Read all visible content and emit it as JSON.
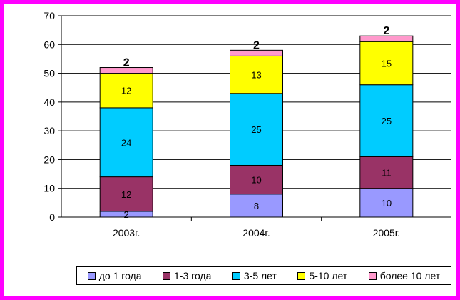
{
  "chart_data": {
    "type": "bar",
    "stacked": true,
    "categories": [
      "2003г.",
      "2004г.",
      "2005г."
    ],
    "series": [
      {
        "name": "до 1 года",
        "color": "#9999ff",
        "values": [
          2,
          8,
          10
        ]
      },
      {
        "name": "1-3 года",
        "color": "#993366",
        "values": [
          12,
          10,
          11
        ]
      },
      {
        "name": "3-5 лет",
        "color": "#00ccff",
        "values": [
          24,
          25,
          25
        ]
      },
      {
        "name": "5-10 лет",
        "color": "#ffff00",
        "values": [
          12,
          13,
          15
        ]
      },
      {
        "name": "более 10 лет",
        "color": "#ff99cc",
        "values": [
          2,
          2,
          2
        ]
      }
    ],
    "ylim": [
      0,
      70
    ],
    "yticks": [
      0,
      10,
      20,
      30,
      40,
      50,
      60,
      70
    ],
    "grid": true,
    "legend_position": "bottom-right",
    "title": "",
    "xlabel": "",
    "ylabel": ""
  }
}
